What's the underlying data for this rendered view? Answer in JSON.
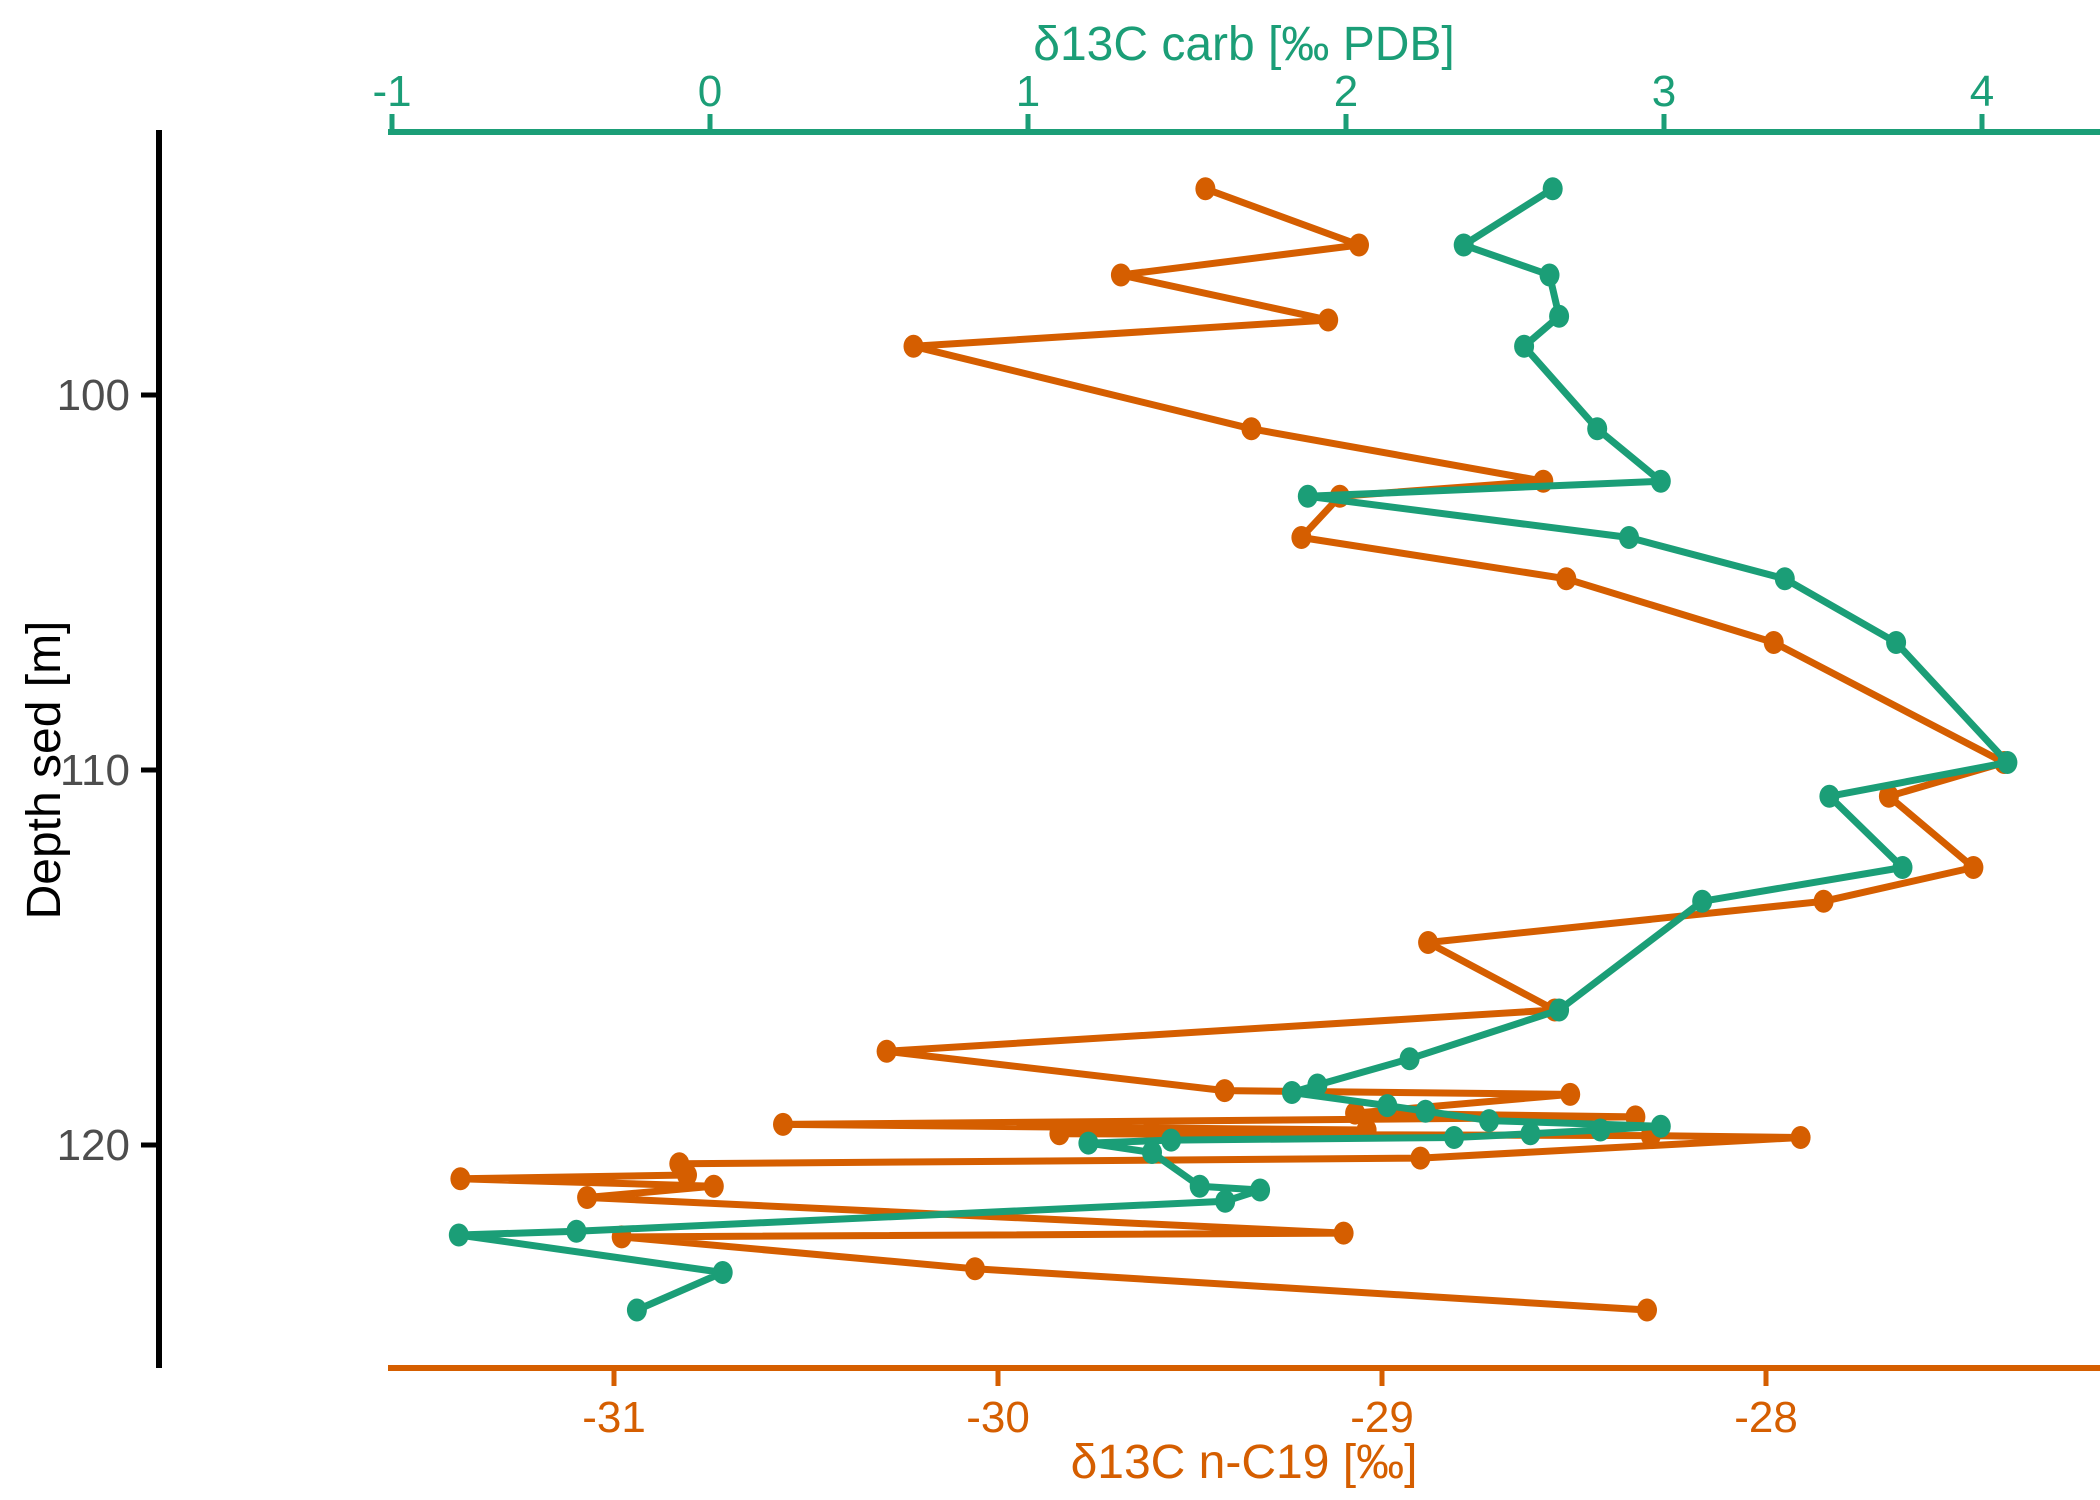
{
  "chart_data": {
    "type": "line",
    "subtype": "depth-profile-scatter-path",
    "background": "#ffffff",
    "grid": false,
    "legend": false,
    "top_axis": {
      "label": "δ13C carb [‰ PDB]",
      "color": "#1b9e77",
      "ticks": [
        -1,
        0,
        1,
        2,
        3,
        4
      ],
      "range": [
        -1.02,
        4.37
      ]
    },
    "bottom_axis": {
      "label": "δ13C n-C19 [‰]",
      "color": "#d55e00",
      "ticks": [
        -31,
        -30,
        -29,
        -28
      ],
      "range": [
        -31.58,
        -27.13
      ]
    },
    "y_axis": {
      "label": "Depth sed [m]",
      "ticks": [
        100,
        110,
        120
      ],
      "range": [
        93.0,
        125.9
      ],
      "direction": "increasing-downward",
      "line_color": "#000000",
      "tick_label_color": "#4d4d4d"
    },
    "series": [
      {
        "name": "δ13C carb",
        "axis": "top",
        "color": "#1b9e77",
        "points": [
          [
            2.65,
            94.5
          ],
          [
            2.37,
            96.0
          ],
          [
            2.64,
            96.8
          ],
          [
            2.67,
            97.9
          ],
          [
            2.56,
            98.7
          ],
          [
            2.79,
            100.9
          ],
          [
            2.99,
            102.3
          ],
          [
            1.88,
            102.7
          ],
          [
            2.89,
            103.8
          ],
          [
            3.38,
            104.9
          ],
          [
            3.73,
            106.6
          ],
          [
            4.08,
            109.8
          ],
          [
            3.52,
            110.7
          ],
          [
            3.75,
            112.6
          ],
          [
            3.12,
            113.5
          ],
          [
            2.67,
            116.4
          ],
          [
            2.2,
            117.7
          ],
          [
            1.91,
            118.4
          ],
          [
            1.83,
            118.6
          ],
          [
            2.13,
            118.95
          ],
          [
            2.25,
            119.1
          ],
          [
            2.45,
            119.35
          ],
          [
            2.99,
            119.5
          ],
          [
            2.8,
            119.6
          ],
          [
            2.58,
            119.7
          ],
          [
            2.34,
            119.8
          ],
          [
            1.45,
            119.87
          ],
          [
            1.19,
            119.95
          ],
          [
            1.39,
            120.2
          ],
          [
            1.54,
            121.1
          ],
          [
            1.73,
            121.2
          ],
          [
            1.62,
            121.5
          ],
          [
            -0.42,
            122.3
          ],
          [
            -0.79,
            122.4
          ],
          [
            0.04,
            123.4
          ],
          [
            -0.23,
            124.4
          ]
        ]
      },
      {
        "name": "δ13C n-C19",
        "axis": "bottom",
        "color": "#d55e00",
        "points": [
          [
            -29.46,
            94.5
          ],
          [
            -29.06,
            96.0
          ],
          [
            -29.68,
            96.8
          ],
          [
            -29.14,
            98.0
          ],
          [
            -30.22,
            98.7
          ],
          [
            -29.34,
            100.9
          ],
          [
            -28.58,
            102.3
          ],
          [
            -29.11,
            102.7
          ],
          [
            -29.21,
            103.8
          ],
          [
            -28.52,
            104.9
          ],
          [
            -27.98,
            106.6
          ],
          [
            -27.38,
            109.8
          ],
          [
            -27.68,
            110.7
          ],
          [
            -27.46,
            112.6
          ],
          [
            -27.85,
            113.5
          ],
          [
            -28.88,
            114.6
          ],
          [
            -28.55,
            116.4
          ],
          [
            -30.29,
            117.5
          ],
          [
            -29.41,
            118.55
          ],
          [
            -28.51,
            118.65
          ],
          [
            -29.07,
            119.15
          ],
          [
            -28.34,
            119.25
          ],
          [
            -30.56,
            119.45
          ],
          [
            -29.04,
            119.6
          ],
          [
            -29.84,
            119.7
          ],
          [
            -28.3,
            119.75
          ],
          [
            -27.91,
            119.8
          ],
          [
            -28.9,
            120.35
          ],
          [
            -30.83,
            120.5
          ],
          [
            -30.81,
            120.8
          ],
          [
            -31.4,
            120.9
          ],
          [
            -30.74,
            121.1
          ],
          [
            -31.07,
            121.4
          ],
          [
            -29.1,
            122.35
          ],
          [
            -30.98,
            122.45
          ],
          [
            -30.06,
            123.3
          ],
          [
            -28.31,
            124.4
          ]
        ]
      }
    ]
  }
}
